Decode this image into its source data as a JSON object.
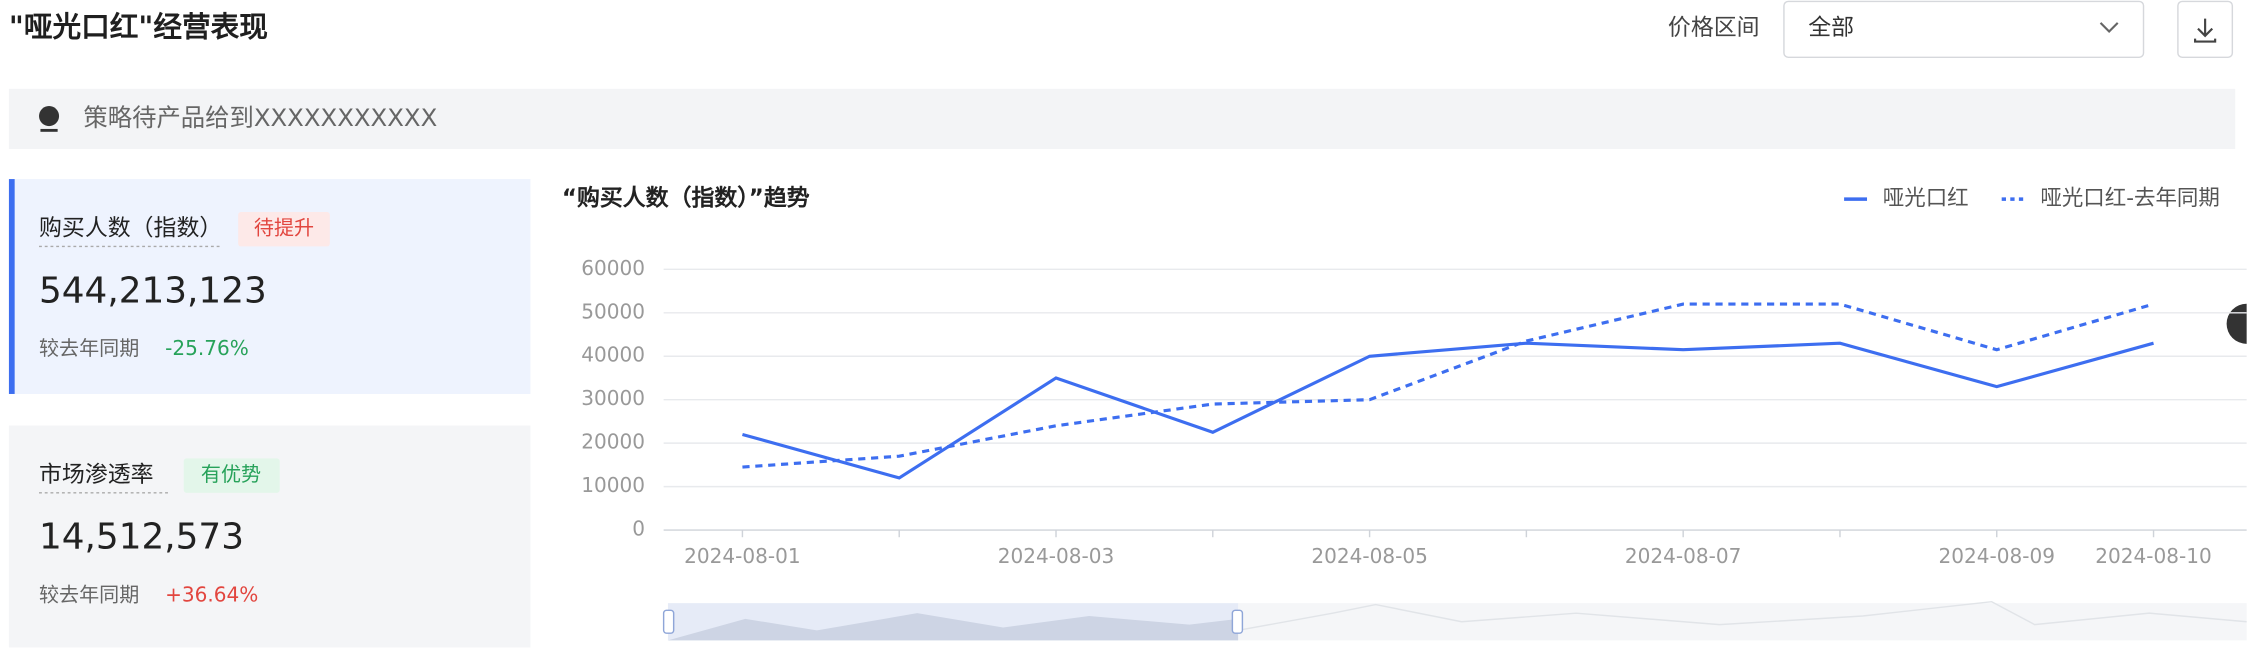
{
  "header": {
    "title": "\"哑光口红\"经营表现",
    "filter_label": "价格区间",
    "filter_value": "全部"
  },
  "notice": "策略待产品给到XXXXXXXXXXX",
  "metrics": [
    {
      "name": "购买人数（指数）",
      "tag": "待提升",
      "value": "544,213,123",
      "compare_label": "较去年同期",
      "change": "-25.76%"
    },
    {
      "name": "市场渗透率",
      "tag": "有优势",
      "value": "14,512,573",
      "compare_label": "较去年同期",
      "change": "+36.64%"
    }
  ],
  "chart_data": {
    "type": "line",
    "title": "“购买人数（指数）”趋势",
    "categories": [
      "2024-08-01",
      null,
      "2024-08-03",
      null,
      "2024-08-05",
      null,
      "2024-08-07",
      null,
      "2024-08-09",
      "2024-08-10"
    ],
    "series": [
      {
        "name": "哑光口红",
        "color": "#3d6ef0",
        "dashed": false,
        "values": [
          22000,
          12000,
          35000,
          22500,
          40000,
          43000,
          41500,
          43000,
          33000,
          43000
        ]
      },
      {
        "name": "哑光口红-去年同期",
        "color": "#3d6ef0",
        "dashed": true,
        "values": [
          14500,
          17000,
          24000,
          29000,
          30000,
          43500,
          52000,
          52000,
          41500,
          52000
        ]
      }
    ],
    "ylim": [
      0,
      60000
    ],
    "yticks": [
      0,
      10000,
      20000,
      30000,
      40000,
      50000,
      60000
    ],
    "grid": true
  }
}
